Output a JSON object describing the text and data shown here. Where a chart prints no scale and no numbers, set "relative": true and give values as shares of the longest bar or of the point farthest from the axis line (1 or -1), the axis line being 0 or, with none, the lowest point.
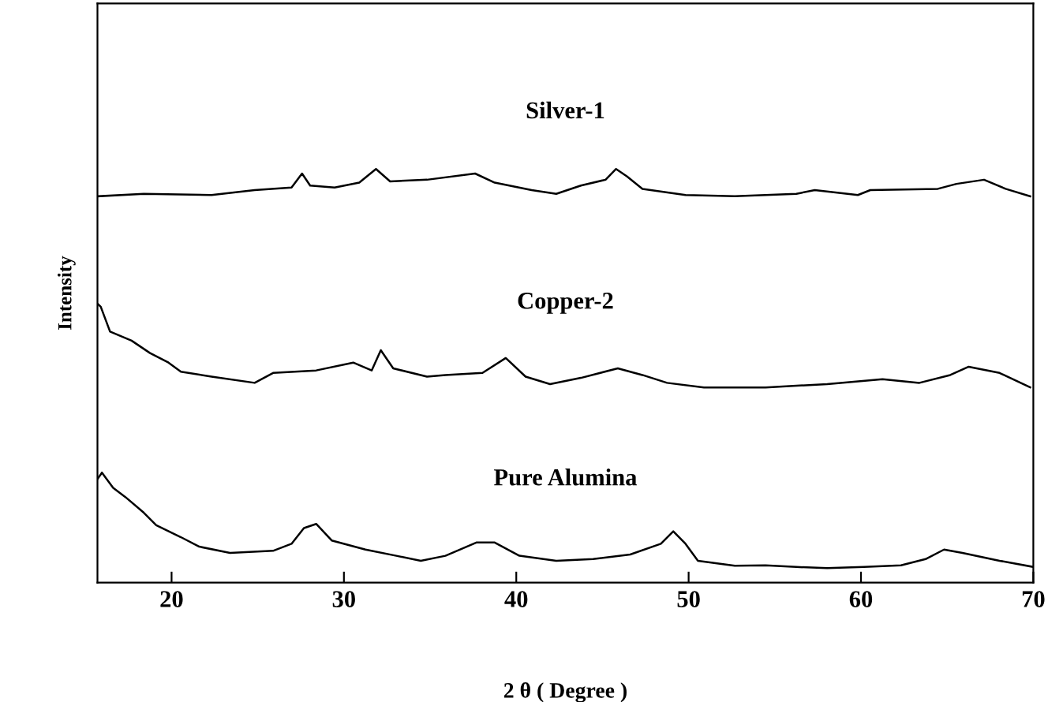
{
  "chart_data": {
    "type": "line",
    "relative": true,
    "xlabel": "2 θ ( Degree )",
    "ylabel": "Intensity",
    "xlim": [
      15.7,
      70
    ],
    "xticks": [
      20,
      30,
      40,
      50,
      60,
      70
    ],
    "grid": false,
    "legend": false,
    "marker": "none",
    "line_style": "solid",
    "tick_labels": "x",
    "series": [
      {
        "name": "Silver-1",
        "color": "#000000",
        "x": [
          15.71,
          18.39,
          22.32,
          24.82,
          26.96,
          27.57,
          28.04,
          29.46,
          30.89,
          31.86,
          32.68,
          34.82,
          37.61,
          38.75,
          40.89,
          42.32,
          43.75,
          45.18,
          45.79,
          46.43,
          47.32,
          49.82,
          52.68,
          56.25,
          57.32,
          59.82,
          60.54,
          64.46,
          65.54,
          67.14,
          68.39,
          69.82
        ],
        "values": [
          0.934,
          0.94,
          0.937,
          0.949,
          0.955,
          0.989,
          0.96,
          0.955,
          0.967,
          1,
          0.97,
          0.974,
          0.989,
          0.967,
          0.949,
          0.94,
          0.96,
          0.974,
          1,
          0.982,
          0.952,
          0.937,
          0.934,
          0.94,
          0.949,
          0.937,
          0.949,
          0.952,
          0.964,
          0.974,
          0.952,
          0.934
        ]
      },
      {
        "name": "Copper-2",
        "color": "#000000",
        "x": [
          15.71,
          15.89,
          16.43,
          17.68,
          18.75,
          19.82,
          20.54,
          22.32,
          24.82,
          25.89,
          28.39,
          30.54,
          31.61,
          32.14,
          32.86,
          34.82,
          35.89,
          38.04,
          39.39,
          40.54,
          41.96,
          43.75,
          45.89,
          47.32,
          48.75,
          50.89,
          54.46,
          58.04,
          61.25,
          63.39,
          65.18,
          66.25,
          68.04,
          69.82
        ],
        "values": [
          0.674,
          0.667,
          0.607,
          0.585,
          0.555,
          0.532,
          0.51,
          0.498,
          0.483,
          0.507,
          0.513,
          0.532,
          0.513,
          0.562,
          0.518,
          0.498,
          0.502,
          0.507,
          0.543,
          0.498,
          0.48,
          0.495,
          0.518,
          0.502,
          0.483,
          0.472,
          0.472,
          0.48,
          0.492,
          0.483,
          0.502,
          0.522,
          0.507,
          0.472
        ]
      },
      {
        "name": "Pure Alumina",
        "color": "#000000",
        "x": [
          15.71,
          15.96,
          16.61,
          17.32,
          18.39,
          19.11,
          20.54,
          21.61,
          23.39,
          25.89,
          26.96,
          27.68,
          28.39,
          29.29,
          31.25,
          33.04,
          34.46,
          35.89,
          37.68,
          38.75,
          40.18,
          42.32,
          44.46,
          46.61,
          48.39,
          49.11,
          49.82,
          50.54,
          52.68,
          54.46,
          56.25,
          58.04,
          60.18,
          62.32,
          63.75,
          64.82,
          65.89,
          68.04,
          70.0
        ],
        "values": [
          0.251,
          0.266,
          0.229,
          0.207,
          0.169,
          0.139,
          0.11,
          0.087,
          0.072,
          0.077,
          0.094,
          0.132,
          0.142,
          0.102,
          0.08,
          0.065,
          0.053,
          0.065,
          0.097,
          0.097,
          0.065,
          0.053,
          0.057,
          0.068,
          0.094,
          0.124,
          0.094,
          0.053,
          0.041,
          0.042,
          0.038,
          0.035,
          0.038,
          0.042,
          0.057,
          0.08,
          0.072,
          0.053,
          0.038
        ]
      }
    ]
  }
}
